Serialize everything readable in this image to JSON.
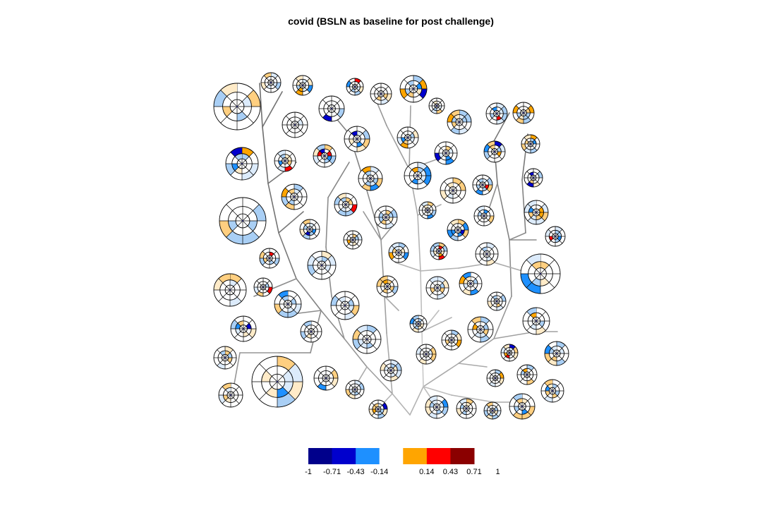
{
  "chart_data": {
    "type": "tree-of-radial-glyphs",
    "title": "covid (BSLN as baseline for post challenge)",
    "color_scale": {
      "ticks": [
        "-1",
        "-0.71",
        "-0.43",
        "-0.14",
        "0.14",
        "0.43",
        "0.71",
        "1"
      ],
      "bins": [
        {
          "from": -1,
          "to": -0.71,
          "color": "#00008B"
        },
        {
          "from": -0.71,
          "to": -0.43,
          "color": "#0000CD"
        },
        {
          "from": -0.43,
          "to": -0.14,
          "color": "#1E90FF"
        },
        {
          "from": -0.14,
          "to": 0.14,
          "color": "#FFFFFF"
        },
        {
          "from": 0.14,
          "to": 0.43,
          "color": "#FFA500"
        },
        {
          "from": 0.43,
          "to": 0.71,
          "color": "#FF0000"
        },
        {
          "from": 0.71,
          "to": 1,
          "color": "#8B0000"
        }
      ]
    },
    "colors": {
      "neg_strong": "#0000CD",
      "neg_mid": "#1E90FF",
      "neg_light": "#A9CFF5",
      "neg_pale": "#DCEBFB",
      "pos_pale": "#FFEBC8",
      "pos_light": "#FFCF80",
      "pos_mid": "#FFA500",
      "pos_strong": "#FF0000",
      "pos_darkest": "#8B0000"
    }
  }
}
